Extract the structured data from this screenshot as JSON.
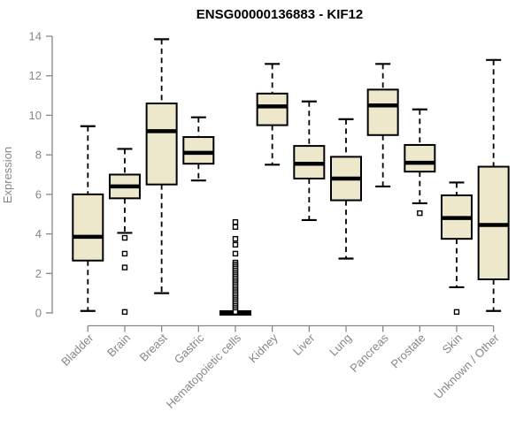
{
  "chart_data": {
    "type": "boxplot",
    "title": "ENSG00000136883 - KIF12",
    "xlabel": "",
    "ylabel": "Expression",
    "ylim": [
      0,
      14
    ],
    "yticks": [
      0,
      2,
      4,
      6,
      8,
      10,
      12,
      14
    ],
    "grid": false,
    "legend": null,
    "categories": [
      "Bladder",
      "Brain",
      "Breast",
      "Gastric",
      "Hematopoietic cells",
      "Kidney",
      "Liver",
      "Lung",
      "Pancreas",
      "Prostate",
      "Skin",
      "Unknown / Other"
    ],
    "boxes": [
      {
        "category": "Bladder",
        "whisker_low": 0.1,
        "q1": 2.65,
        "median": 3.85,
        "q3": 6.0,
        "whisker_high": 9.45,
        "outliers": []
      },
      {
        "category": "Brain",
        "whisker_low": 4.05,
        "q1": 5.8,
        "median": 6.4,
        "q3": 7.0,
        "whisker_high": 8.3,
        "outliers": [
          3.8,
          3.0,
          2.3,
          0.05
        ]
      },
      {
        "category": "Breast",
        "whisker_low": 1.0,
        "q1": 6.5,
        "median": 9.2,
        "q3": 10.6,
        "whisker_high": 13.85,
        "outliers": []
      },
      {
        "category": "Gastric",
        "whisker_low": 6.7,
        "q1": 7.55,
        "median": 8.1,
        "q3": 8.9,
        "whisker_high": 9.9,
        "outliers": []
      },
      {
        "category": "Hematopoietic cells",
        "whisker_low": 0,
        "q1": 0,
        "median": 0,
        "q3": 0,
        "whisker_high": 0,
        "outliers": [
          4.6,
          4.35,
          3.75,
          3.45,
          3.0,
          2.55,
          2.45,
          2.35,
          2.25,
          2.15,
          2.05,
          1.95,
          1.85,
          1.75,
          1.65,
          1.55,
          1.45,
          1.35,
          1.25,
          1.15,
          1.05,
          0.95,
          0.85,
          0.75,
          0.65,
          0.55,
          0.45,
          0.35,
          0.25,
          0.15,
          0.05
        ]
      },
      {
        "category": "Kidney",
        "whisker_low": 7.5,
        "q1": 9.5,
        "median": 10.45,
        "q3": 11.1,
        "whisker_high": 12.6,
        "outliers": []
      },
      {
        "category": "Liver",
        "whisker_low": 4.7,
        "q1": 6.8,
        "median": 7.55,
        "q3": 8.45,
        "whisker_high": 10.7,
        "outliers": []
      },
      {
        "category": "Lung",
        "whisker_low": 2.75,
        "q1": 5.7,
        "median": 6.8,
        "q3": 7.9,
        "whisker_high": 9.8,
        "outliers": []
      },
      {
        "category": "Pancreas",
        "whisker_low": 6.4,
        "q1": 9.0,
        "median": 10.5,
        "q3": 11.3,
        "whisker_high": 12.6,
        "outliers": []
      },
      {
        "category": "Prostate",
        "whisker_low": 5.55,
        "q1": 7.15,
        "median": 7.6,
        "q3": 8.5,
        "whisker_high": 10.3,
        "outliers": [
          5.05
        ]
      },
      {
        "category": "Skin",
        "whisker_low": 1.3,
        "q1": 3.75,
        "median": 4.8,
        "q3": 5.95,
        "whisker_high": 6.6,
        "outliers": [
          0.05
        ]
      },
      {
        "category": "Unknown / Other",
        "whisker_low": 0.1,
        "q1": 1.7,
        "median": 4.45,
        "q3": 7.4,
        "whisker_high": 12.8,
        "outliers": []
      }
    ],
    "colors": {
      "box_fill": "#EDE7CB",
      "box_border": "#000000",
      "median": "#000000",
      "whisker": "#000000",
      "outlier_fill": "#ffffff",
      "axis": "#878787",
      "tick_label": "#878787",
      "title": "#000000"
    }
  }
}
